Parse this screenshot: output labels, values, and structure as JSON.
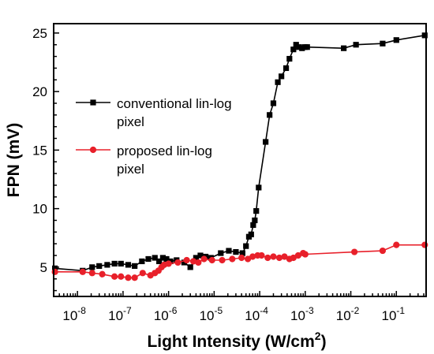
{
  "chart_data": {
    "type": "line",
    "xlabel": "Light Intensity (W/cm",
    "xlabel_superscript": "2",
    "xlabel_suffix": ")",
    "ylabel": "FPN (mV)",
    "x_scale": "log",
    "xlim": [
      3e-09,
      0.45
    ],
    "ylim": [
      2.5,
      25.8
    ],
    "x_ticks": [
      1e-08,
      1e-07,
      1e-06,
      1e-05,
      0.0001,
      0.001,
      0.01,
      0.1
    ],
    "x_tick_base": "10",
    "x_tick_exponents": [
      "-8",
      "-7",
      "-6",
      "-5",
      "-4",
      "-3",
      "-2",
      "-1"
    ],
    "y_ticks": [
      5,
      10,
      15,
      20,
      25
    ],
    "y_tick_labels": [
      "5",
      "10",
      "15",
      "20",
      "25"
    ],
    "grid": false,
    "legend_position": "upper-left",
    "series": [
      {
        "name": "conventional lin-log pixel",
        "legend_lines": [
          "conventional lin-log",
          "pixel"
        ],
        "color": "#000000",
        "marker": "square",
        "points": [
          [
            3.2e-09,
            4.9
          ],
          [
            1.3e-08,
            4.7
          ],
          [
            2.1e-08,
            5.0
          ],
          [
            3e-08,
            5.1
          ],
          [
            4.5e-08,
            5.2
          ],
          [
            6.5e-08,
            5.3
          ],
          [
            9e-08,
            5.3
          ],
          [
            1.3e-07,
            5.2
          ],
          [
            1.8e-07,
            5.1
          ],
          [
            2.6e-07,
            5.5
          ],
          [
            3.6e-07,
            5.7
          ],
          [
            5e-07,
            5.8
          ],
          [
            6.2e-07,
            5.5
          ],
          [
            7.5e-07,
            5.8
          ],
          [
            9e-07,
            5.7
          ],
          [
            1.1e-06,
            5.5
          ],
          [
            1.5e-06,
            5.6
          ],
          [
            2.2e-06,
            5.4
          ],
          [
            3e-06,
            5.0
          ],
          [
            4e-06,
            5.8
          ],
          [
            5e-06,
            6.0
          ],
          [
            6.5e-06,
            5.9
          ],
          [
            8.5e-06,
            5.8
          ],
          [
            1.4e-05,
            6.2
          ],
          [
            2.1e-05,
            6.4
          ],
          [
            3e-05,
            6.3
          ],
          [
            4.2e-05,
            6.2
          ],
          [
            5e-05,
            6.8
          ],
          [
            5.8e-05,
            7.6
          ],
          [
            6.5e-05,
            7.8
          ],
          [
            7.2e-05,
            8.6
          ],
          [
            7.8e-05,
            9.0
          ],
          [
            8.4e-05,
            9.8
          ],
          [
            9.5e-05,
            11.8
          ],
          [
            0.000135,
            15.7
          ],
          [
            0.000165,
            18.0
          ],
          [
            0.0002,
            19.0
          ],
          [
            0.00025,
            20.8
          ],
          [
            0.0003,
            21.3
          ],
          [
            0.00038,
            22.0
          ],
          [
            0.00045,
            22.8
          ],
          [
            0.00055,
            23.6
          ],
          [
            0.00063,
            24.0
          ],
          [
            0.00073,
            23.8
          ],
          [
            0.00085,
            23.7
          ],
          [
            0.00098,
            23.8
          ],
          [
            0.0011,
            23.8
          ],
          [
            0.007,
            23.7
          ],
          [
            0.013,
            24.0
          ],
          [
            0.05,
            24.1
          ],
          [
            0.1,
            24.4
          ],
          [
            0.42,
            24.8
          ]
        ]
      },
      {
        "name": "proposed lin-log pixel",
        "legend_lines": [
          "proposed lin-log",
          "pixel"
        ],
        "color": "#e8202a",
        "marker": "circle",
        "points": [
          [
            3.2e-09,
            4.6
          ],
          [
            1.3e-08,
            4.6
          ],
          [
            2.1e-08,
            4.5
          ],
          [
            3.5e-08,
            4.4
          ],
          [
            6.5e-08,
            4.2
          ],
          [
            9e-08,
            4.2
          ],
          [
            1.3e-07,
            4.1
          ],
          [
            1.8e-07,
            4.1
          ],
          [
            2.7e-07,
            4.5
          ],
          [
            4e-07,
            4.3
          ],
          [
            5e-07,
            4.5
          ],
          [
            6e-07,
            4.7
          ],
          [
            7e-07,
            5.0
          ],
          [
            8e-07,
            5.2
          ],
          [
            1e-06,
            5.3
          ],
          [
            1.6e-06,
            5.4
          ],
          [
            2.5e-06,
            5.6
          ],
          [
            3.5e-06,
            5.5
          ],
          [
            4.5e-06,
            5.4
          ],
          [
            6e-06,
            5.7
          ],
          [
            9e-06,
            5.6
          ],
          [
            1.5e-05,
            5.6
          ],
          [
            2.5e-05,
            5.7
          ],
          [
            4e-05,
            5.8
          ],
          [
            5.5e-05,
            5.7
          ],
          [
            7e-05,
            5.9
          ],
          [
            9e-05,
            6.0
          ],
          [
            0.00011,
            6.0
          ],
          [
            0.00015,
            5.8
          ],
          [
            0.0002,
            5.9
          ],
          [
            0.00027,
            5.8
          ],
          [
            0.00035,
            5.9
          ],
          [
            0.00045,
            5.7
          ],
          [
            0.00055,
            5.8
          ],
          [
            0.0007,
            6.0
          ],
          [
            0.0009,
            6.2
          ],
          [
            0.001,
            6.1
          ],
          [
            0.012,
            6.3
          ],
          [
            0.05,
            6.4
          ],
          [
            0.1,
            6.9
          ],
          [
            0.42,
            6.9
          ]
        ]
      }
    ]
  }
}
